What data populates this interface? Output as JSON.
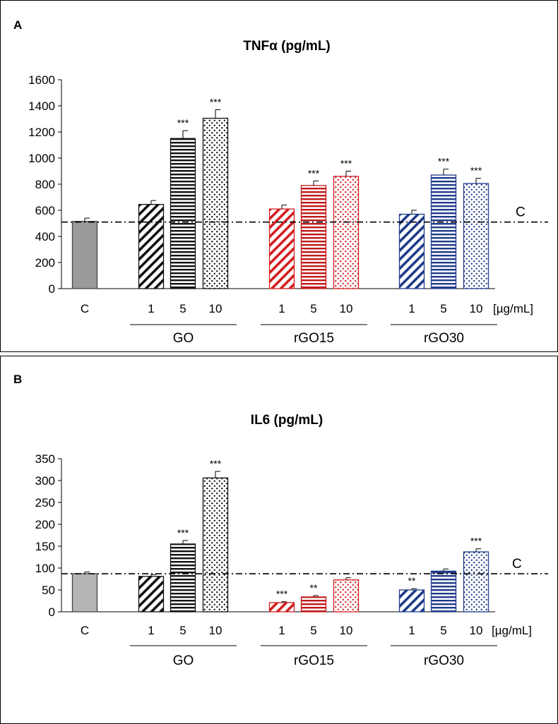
{
  "chart_data": [
    {
      "type": "bar",
      "panel_label": "A",
      "title": "TNFα (pg/mL)",
      "ylim": [
        0,
        1600
      ],
      "yticks": [
        0,
        200,
        400,
        600,
        800,
        1000,
        1200,
        1400,
        1600
      ],
      "unit_label": "[µg/mL]",
      "reference_line": {
        "label": "C",
        "value": 510
      },
      "bars": [
        {
          "group": "",
          "dose": "C",
          "value": 515,
          "error": 25,
          "sig": "",
          "color": "#9a9a9a",
          "pattern": "solid"
        },
        {
          "group": "GO",
          "dose": "1",
          "value": 645,
          "error": 30,
          "sig": "",
          "color": "#111111",
          "pattern": "diagonal"
        },
        {
          "group": "GO",
          "dose": "5",
          "value": 1150,
          "error": 60,
          "sig": "***",
          "color": "#111111",
          "pattern": "horizontal"
        },
        {
          "group": "GO",
          "dose": "10",
          "value": 1305,
          "error": 65,
          "sig": "***",
          "color": "#111111",
          "pattern": "dots"
        },
        {
          "group": "rGO15",
          "dose": "1",
          "value": 610,
          "error": 30,
          "sig": "",
          "color": "#d21f1f",
          "pattern": "diagonal"
        },
        {
          "group": "rGO15",
          "dose": "5",
          "value": 790,
          "error": 35,
          "sig": "***",
          "color": "#c01818",
          "pattern": "horizontal"
        },
        {
          "group": "rGO15",
          "dose": "10",
          "value": 860,
          "error": 40,
          "sig": "***",
          "color": "#d21f1f",
          "pattern": "dots"
        },
        {
          "group": "rGO30",
          "dose": "1",
          "value": 570,
          "error": 30,
          "sig": "",
          "color": "#1f3a8a",
          "pattern": "diagonal"
        },
        {
          "group": "rGO30",
          "dose": "5",
          "value": 870,
          "error": 45,
          "sig": "***",
          "color": "#1f3a8a",
          "pattern": "horizontal"
        },
        {
          "group": "rGO30",
          "dose": "10",
          "value": 805,
          "error": 40,
          "sig": "***",
          "color": "#1f3a8a",
          "pattern": "dots"
        }
      ],
      "groups": [
        "GO",
        "rGO15",
        "rGO30"
      ]
    },
    {
      "type": "bar",
      "panel_label": "B",
      "title": "IL6 (pg/mL)",
      "ylim": [
        0,
        350
      ],
      "yticks": [
        0,
        50,
        100,
        150,
        200,
        250,
        300,
        350
      ],
      "unit_label": "[µg/mL]",
      "reference_line": {
        "label": "C",
        "value": 87
      },
      "bars": [
        {
          "group": "",
          "dose": "C",
          "value": 87,
          "error": 4,
          "sig": "",
          "color": "#b5b5b5",
          "pattern": "solid"
        },
        {
          "group": "GO",
          "dose": "1",
          "value": 81,
          "error": 4,
          "sig": "",
          "color": "#111111",
          "pattern": "diagonal"
        },
        {
          "group": "GO",
          "dose": "5",
          "value": 155,
          "error": 8,
          "sig": "***",
          "color": "#111111",
          "pattern": "horizontal"
        },
        {
          "group": "GO",
          "dose": "10",
          "value": 306,
          "error": 15,
          "sig": "***",
          "color": "#111111",
          "pattern": "dots"
        },
        {
          "group": "rGO15",
          "dose": "1",
          "value": 21,
          "error": 2,
          "sig": "***",
          "color": "#d21f1f",
          "pattern": "diagonal"
        },
        {
          "group": "rGO15",
          "dose": "5",
          "value": 34,
          "error": 3,
          "sig": "**",
          "color": "#c01818",
          "pattern": "horizontal"
        },
        {
          "group": "rGO15",
          "dose": "10",
          "value": 73,
          "error": 5,
          "sig": "",
          "color": "#d21f1f",
          "pattern": "dots"
        },
        {
          "group": "rGO30",
          "dose": "1",
          "value": 50,
          "error": 3,
          "sig": "**",
          "color": "#1f3a8a",
          "pattern": "diagonal"
        },
        {
          "group": "rGO30",
          "dose": "5",
          "value": 93,
          "error": 5,
          "sig": "",
          "color": "#1f3a8a",
          "pattern": "horizontal"
        },
        {
          "group": "rGO30",
          "dose": "10",
          "value": 137,
          "error": 7,
          "sig": "***",
          "color": "#1f3a8a",
          "pattern": "dots"
        }
      ],
      "groups": [
        "GO",
        "rGO15",
        "rGO30"
      ]
    }
  ]
}
